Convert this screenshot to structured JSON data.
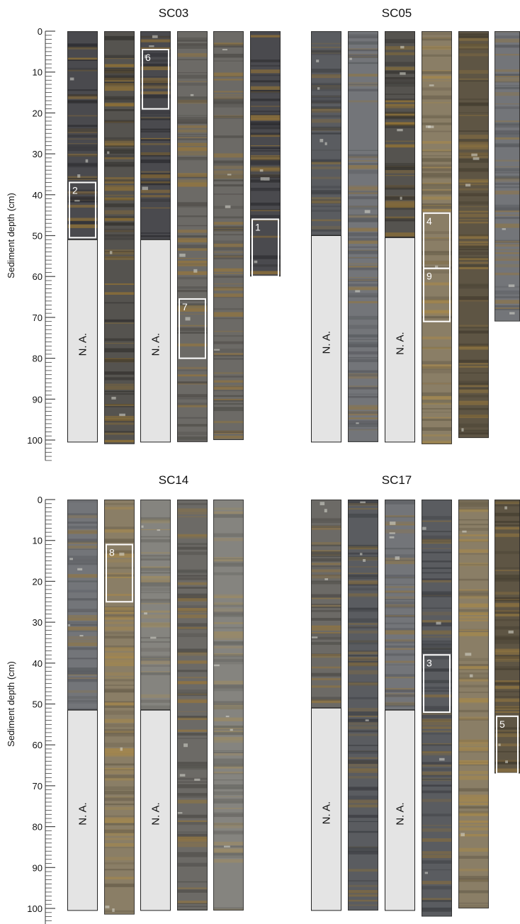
{
  "panels": [
    {
      "title": "SC03",
      "axis_label": "Sediment depth (cm)",
      "ticks": [
        "0",
        "10",
        "20",
        "30",
        "40",
        "50",
        "60",
        "70",
        "80",
        "90",
        "100"
      ],
      "na_label": "N. A.",
      "cores": [
        {
          "length_cm": 51,
          "na": true,
          "palette": "dark"
        },
        {
          "length_cm": 101,
          "na": false,
          "palette": "dark-brown"
        },
        {
          "length_cm": 51,
          "na": true,
          "palette": "dark"
        },
        {
          "length_cm": 100.5,
          "na": false,
          "palette": "grey-brown"
        },
        {
          "length_cm": 100,
          "na": false,
          "palette": "grey-brown"
        },
        {
          "length_cm": 60,
          "na": false,
          "palette": "dark"
        }
      ],
      "boxes": [
        {
          "label": "6",
          "core": 3,
          "top_cm": 4.5,
          "bottom_cm": 19
        },
        {
          "label": "2",
          "core": 1,
          "top_cm": 37,
          "bottom_cm": 50.5
        },
        {
          "label": "1",
          "core": 6,
          "top_cm": 46,
          "bottom_cm": 60
        },
        {
          "label": "7",
          "core": 4,
          "top_cm": 65.5,
          "bottom_cm": 80
        }
      ]
    },
    {
      "title": "SC05",
      "axis_label": "",
      "ticks": [],
      "na_label": "N. A.",
      "cores": [
        {
          "length_cm": 50,
          "na": true,
          "palette": "dark-grey"
        },
        {
          "length_cm": 100.5,
          "na": false,
          "palette": "grey"
        },
        {
          "length_cm": 50.5,
          "na": true,
          "palette": "dark-brown"
        },
        {
          "length_cm": 101,
          "na": false,
          "palette": "tan"
        },
        {
          "length_cm": 99.5,
          "na": false,
          "palette": "brown"
        },
        {
          "length_cm": 71,
          "na": false,
          "palette": "grey"
        }
      ],
      "boxes": [
        {
          "label": "4",
          "core": 4,
          "top_cm": 44.5,
          "bottom_cm": 58
        },
        {
          "label": "9",
          "core": 4,
          "top_cm": 58,
          "bottom_cm": 71
        }
      ]
    },
    {
      "title": "SC14",
      "axis_label": "Sediment depth (cm)",
      "ticks": [
        "0",
        "10",
        "20",
        "30",
        "40",
        "50",
        "60",
        "70",
        "80",
        "90",
        "100"
      ],
      "na_label": "N. A.",
      "cores": [
        {
          "length_cm": 51.5,
          "na": true,
          "palette": "grey"
        },
        {
          "length_cm": 101.5,
          "na": false,
          "palette": "tan"
        },
        {
          "length_cm": 51.5,
          "na": true,
          "palette": "light-grey"
        },
        {
          "length_cm": 100.5,
          "na": false,
          "palette": "grey-brown"
        },
        {
          "length_cm": 100.5,
          "na": false,
          "palette": "light-grey"
        }
      ],
      "boxes": [
        {
          "label": "8",
          "core": 2,
          "top_cm": 11,
          "bottom_cm": 25
        }
      ]
    },
    {
      "title": "SC17",
      "axis_label": "",
      "ticks": [],
      "na_label": "N. A.",
      "cores": [
        {
          "length_cm": 51,
          "na": true,
          "palette": "grey-brown"
        },
        {
          "length_cm": 100.5,
          "na": false,
          "palette": "dark-grey"
        },
        {
          "length_cm": 51.5,
          "na": true,
          "palette": "grey"
        },
        {
          "length_cm": 102,
          "na": false,
          "palette": "dark-grey"
        },
        {
          "length_cm": 100,
          "na": false,
          "palette": "tan"
        },
        {
          "length_cm": 67,
          "na": false,
          "palette": "brown"
        }
      ],
      "boxes": [
        {
          "label": "3",
          "core": 4,
          "top_cm": 38,
          "bottom_cm": 52
        },
        {
          "label": "5",
          "core": 6,
          "top_cm": 53,
          "bottom_cm": 67
        }
      ]
    }
  ],
  "palettes": {
    "dark": {
      "base": "#4a4a4e",
      "band": "#2f2f33",
      "accent": "#8a6e3a"
    },
    "dark-brown": {
      "base": "#55534f",
      "band": "#363431",
      "accent": "#8f7136"
    },
    "grey-brown": {
      "base": "#6c6a66",
      "band": "#504e4a",
      "accent": "#8e7444"
    },
    "dark-grey": {
      "base": "#5a5c60",
      "band": "#3e4044",
      "accent": "#7d6a45"
    },
    "grey": {
      "base": "#737579",
      "band": "#5a5c60",
      "accent": "#8a7650"
    },
    "tan": {
      "base": "#8a7e66",
      "band": "#6e6450",
      "accent": "#a3874e"
    },
    "brown": {
      "base": "#5e5544",
      "band": "#463f31",
      "accent": "#8c7240"
    },
    "light-grey": {
      "base": "#85847f",
      "band": "#6c6b66",
      "accent": "#9a8a66"
    }
  },
  "colors": {
    "na_fill": "#e4e4e4",
    "core_outline": "#2a2a2a",
    "box_stroke": "#ffffff"
  }
}
